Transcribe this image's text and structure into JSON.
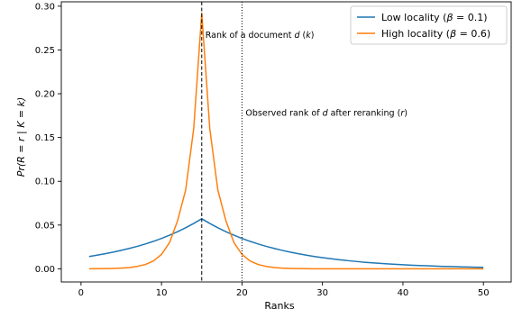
{
  "chart_data": {
    "type": "line",
    "xlabel": "Ranks",
    "ylabel": "Pr(R = r | K = k)",
    "xlim": [
      -2.45,
      53.45
    ],
    "ylim": [
      -0.015,
      0.305
    ],
    "xticks": [
      0,
      10,
      20,
      30,
      40,
      50
    ],
    "yticks": [
      0.0,
      0.05,
      0.1,
      0.15,
      0.2,
      0.25,
      0.3
    ],
    "xtick_labels": [
      "0",
      "10",
      "20",
      "30",
      "40",
      "50"
    ],
    "ytick_labels": [
      "0.00",
      "0.05",
      "0.10",
      "0.15",
      "0.20",
      "0.25",
      "0.30"
    ],
    "grid": false,
    "legend_position": "top-right",
    "series": [
      {
        "name": "Low locality (β = 0.1)",
        "color": "#1f77b4",
        "x": [
          1,
          2,
          3,
          4,
          5,
          6,
          7,
          8,
          9,
          10,
          11,
          12,
          13,
          14,
          15,
          16,
          17,
          18,
          19,
          20,
          21,
          22,
          23,
          24,
          25,
          26,
          27,
          28,
          29,
          30,
          31,
          32,
          33,
          34,
          35,
          36,
          37,
          38,
          39,
          40,
          41,
          42,
          43,
          44,
          45,
          46,
          47,
          48,
          49,
          50
        ],
        "y": [
          0.0141,
          0.0156,
          0.0173,
          0.0191,
          0.0211,
          0.0233,
          0.0257,
          0.0284,
          0.0314,
          0.0347,
          0.0384,
          0.0424,
          0.0469,
          0.0518,
          0.0572,
          0.0518,
          0.0469,
          0.0424,
          0.0384,
          0.0347,
          0.0314,
          0.0284,
          0.0257,
          0.0233,
          0.0211,
          0.0191,
          0.0173,
          0.0156,
          0.0141,
          0.0128,
          0.0116,
          0.0105,
          0.0095,
          0.0086,
          0.0077,
          0.007,
          0.0063,
          0.0057,
          0.0052,
          0.0047,
          0.0042,
          0.0038,
          0.0035,
          0.0031,
          0.0028,
          0.0026,
          0.0023,
          0.0021,
          0.0019,
          0.0017
        ]
      },
      {
        "name": "High locality (β = 0.6)",
        "color": "#ff7f0e",
        "x": [
          1,
          2,
          3,
          4,
          5,
          6,
          7,
          8,
          9,
          10,
          11,
          12,
          13,
          14,
          15,
          16,
          17,
          18,
          19,
          20,
          21,
          22,
          23,
          24,
          25,
          26,
          27,
          28,
          29,
          30,
          31,
          32,
          33,
          34,
          35,
          36,
          37,
          38,
          39,
          40,
          41,
          42,
          43,
          44,
          45,
          46,
          47,
          48,
          49,
          50
        ],
        "y": [
          0.0001,
          0.0002,
          0.0003,
          0.0005,
          0.0008,
          0.0015,
          0.0028,
          0.005,
          0.009,
          0.0165,
          0.03,
          0.055,
          0.09,
          0.16,
          0.292,
          0.16,
          0.09,
          0.055,
          0.03,
          0.0165,
          0.009,
          0.005,
          0.0028,
          0.0015,
          0.0008,
          0.0005,
          0.0003,
          0.0002,
          0.0001,
          0.0001,
          0.0001,
          0.0001,
          0.0001,
          0.0001,
          0.0001,
          0.0001,
          0.0001,
          0.0001,
          0.0001,
          0.0001,
          0.0001,
          0.0001,
          0.0001,
          0.0001,
          0.0001,
          0.0001,
          0.0001,
          0.0001,
          0.0001,
          0.0001
        ]
      }
    ],
    "reference_lines": [
      {
        "x": 15,
        "style": "dashed",
        "label": "Rank of a document d (k)",
        "label_y": 0.267
      },
      {
        "x": 20,
        "style": "dotted",
        "label": "Observed rank of d after reranking (r)",
        "label_y": 0.178
      }
    ]
  }
}
